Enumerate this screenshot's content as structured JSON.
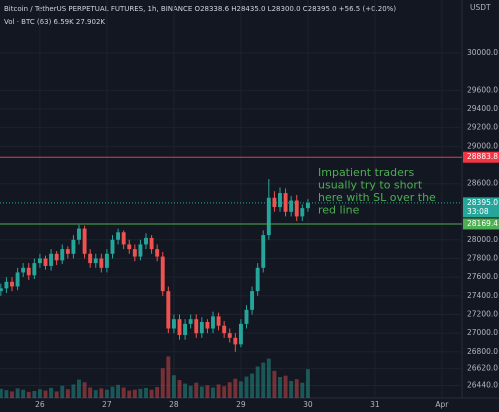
{
  "chart_data": {
    "type": "candlestick",
    "header": "Bitcoin / TetherUS PERPETUAL FUTURES, 1h, BINANCE  O28338.6  H28435.0  L28300.0  C28395.0  +56.5 (+0.20%)",
    "volume_header": "Vol · BTC (63)  6.59K  27.902K",
    "currency": "USDT",
    "annotation": [
      "Impatient traders",
      "usually try to short",
      "here with SL over the",
      "red line"
    ],
    "x": [
      -14,
      -12,
      -10,
      -8,
      -6,
      -4,
      -2,
      0,
      2,
      4,
      6,
      8,
      10,
      12,
      14,
      16,
      18,
      20,
      22,
      24,
      26,
      28,
      30,
      32,
      34,
      36,
      38,
      40,
      42,
      44,
      46,
      48,
      50,
      52,
      54,
      56,
      58,
      60,
      62,
      64,
      66,
      68,
      70,
      72,
      74,
      76,
      78,
      80,
      82,
      84,
      86,
      88,
      90,
      92,
      94,
      96
    ],
    "open": [
      27450,
      27480,
      27550,
      27500,
      27650,
      27700,
      27620,
      27750,
      27800,
      27720,
      27850,
      27780,
      27900,
      27850,
      28000,
      28120,
      27850,
      27750,
      27800,
      27700,
      27850,
      28000,
      28080,
      27950,
      27900,
      27820,
      27950,
      28020,
      27900,
      27820,
      27450,
      27050,
      27150,
      26980,
      27100,
      27150,
      27000,
      27120,
      27050,
      27180,
      27080,
      27000,
      26950,
      26880,
      27100,
      27250,
      27450,
      27700,
      28050,
      28450,
      28350,
      28500,
      28300,
      28420,
      28250,
      28338.6
    ],
    "high": [
      27530,
      27600,
      27600,
      27700,
      27750,
      27750,
      27800,
      27850,
      27830,
      27900,
      27880,
      27950,
      27930,
      28050,
      28160,
      28150,
      27900,
      27850,
      27850,
      27900,
      28050,
      28120,
      28100,
      28000,
      27950,
      28000,
      28070,
      28050,
      27950,
      27870,
      27500,
      27200,
      27200,
      27150,
      27200,
      27200,
      27170,
      27150,
      27230,
      27220,
      27130,
      27050,
      27000,
      27150,
      27300,
      27500,
      27750,
      28100,
      28650,
      28520,
      28560,
      28550,
      28470,
      28480,
      28380,
      28435.0
    ],
    "low": [
      27400,
      27430,
      27450,
      27460,
      27600,
      27570,
      27580,
      27700,
      27680,
      27670,
      27730,
      27740,
      27800,
      27800,
      27950,
      27800,
      27700,
      27700,
      27650,
      27650,
      27800,
      27950,
      27900,
      27850,
      27770,
      27780,
      27900,
      27850,
      27770,
      27400,
      27000,
      27000,
      26930,
      26930,
      27050,
      26950,
      26950,
      27000,
      27000,
      27030,
      26950,
      26900,
      26800,
      26850,
      27050,
      27200,
      27400,
      27650,
      28000,
      28300,
      28300,
      28250,
      28250,
      28200,
      28200,
      28300.0
    ],
    "close": [
      27480,
      27550,
      27500,
      27650,
      27700,
      27620,
      27750,
      27800,
      27720,
      27850,
      27780,
      27900,
      27850,
      28000,
      28120,
      27850,
      27750,
      27800,
      27700,
      27850,
      28000,
      28080,
      27950,
      27900,
      27820,
      27950,
      28020,
      27900,
      27820,
      27450,
      27050,
      27150,
      26980,
      27100,
      27150,
      27000,
      27120,
      27050,
      27180,
      27080,
      27000,
      26950,
      26880,
      27100,
      27250,
      27450,
      27700,
      28050,
      28450,
      28350,
      28500,
      28300,
      28420,
      28250,
      28338.6,
      28395.0
    ],
    "volume": [
      2.1,
      1.8,
      1.5,
      2.2,
      1.9,
      1.4,
      1.6,
      2.0,
      1.7,
      2.3,
      1.5,
      2.8,
      2.0,
      3.1,
      4.2,
      3.6,
      2.4,
      1.8,
      2.2,
      1.9,
      2.6,
      3.0,
      2.4,
      1.7,
      1.9,
      2.1,
      2.3,
      1.9,
      2.5,
      6.8,
      9.5,
      5.2,
      4.1,
      3.3,
      2.8,
      3.5,
      2.6,
      2.9,
      2.4,
      3.1,
      2.7,
      3.6,
      4.4,
      3.8,
      4.9,
      5.6,
      7.2,
      8.1,
      9.0,
      6.2,
      4.8,
      5.1,
      3.9,
      4.3,
      3.5,
      6.59
    ],
    "up_color": "#26a69a",
    "down_color": "#ef5350",
    "xlim": [
      -14.3,
      151.2
    ],
    "ylim": [
      26306,
      30567
    ],
    "vlim": [
      0,
      16
    ],
    "xticks": [
      {
        "value": 0,
        "label": "26"
      },
      {
        "value": 24,
        "label": "27"
      },
      {
        "value": 48,
        "label": "28"
      },
      {
        "value": 72,
        "label": "29"
      },
      {
        "value": 96,
        "label": "30"
      },
      {
        "value": 120,
        "label": "31"
      },
      {
        "value": 144,
        "label": "Apr"
      }
    ],
    "yticks": [
      {
        "value": 30000,
        "label": "30000.0"
      },
      {
        "value": 29600,
        "label": "29600.0"
      },
      {
        "value": 29400,
        "label": "29400.0"
      },
      {
        "value": 29200,
        "label": "29200.0"
      },
      {
        "value": 29000,
        "label": "29000.0"
      },
      {
        "value": 28600,
        "label": "28600.0"
      },
      {
        "value": 28000,
        "label": "28000.0"
      },
      {
        "value": 27800,
        "label": "27800.0"
      },
      {
        "value": 27600,
        "label": "27600.0"
      },
      {
        "value": 27400,
        "label": "27400.0"
      },
      {
        "value": 27200,
        "label": "27200.0"
      },
      {
        "value": 27000,
        "label": "27000.0"
      },
      {
        "value": 26800,
        "label": "26800.0"
      },
      {
        "value": 26620,
        "label": "26620.0"
      },
      {
        "value": 26440,
        "label": "26440.0"
      }
    ],
    "levels": [
      {
        "value": 28883.8,
        "label": "28883.8",
        "color": "#f23645"
      },
      {
        "value": 28169.4,
        "label": "28169.4",
        "color": "#4caf50"
      }
    ],
    "last_price": {
      "value": 28395.0,
      "label": "28395.0",
      "countdown": "33:08",
      "color": "#26a69a"
    }
  }
}
